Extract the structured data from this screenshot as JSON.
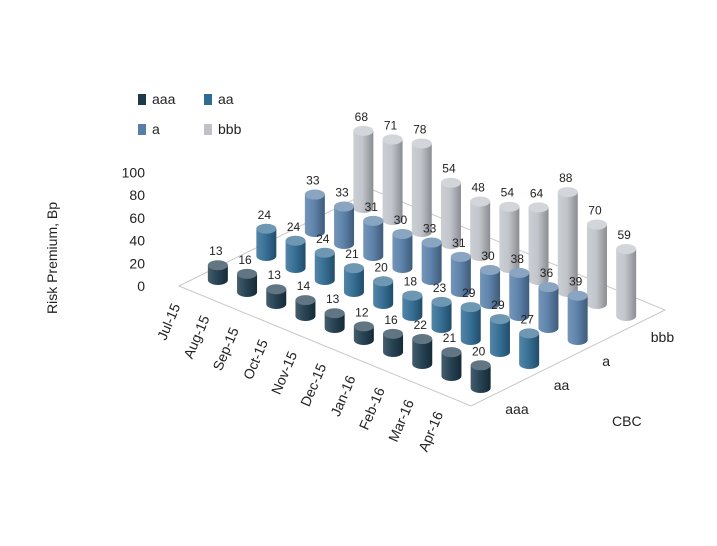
{
  "chart_data": {
    "type": "bar",
    "subtype": "3d-cylinder",
    "title": "",
    "ylabel": "Risk Premium, Bp",
    "depth_axis_label": "CBC",
    "ylim": [
      0,
      100
    ],
    "yticks": [
      "0",
      "20",
      "40",
      "60",
      "80",
      "100"
    ],
    "grid": false,
    "legend_position": "top-left",
    "categories": [
      "Jul-15",
      "Aug-15",
      "Sep-15",
      "Oct-15",
      "Nov-15",
      "Dec-15",
      "Jan-16",
      "Feb-16",
      "Mar-16",
      "Apr-16"
    ],
    "series": [
      {
        "name": "aaa",
        "color": "#1d3a4c",
        "values": [
          13,
          16,
          13,
          14,
          13,
          12,
          16,
          22,
          21,
          20
        ]
      },
      {
        "name": "aa",
        "color": "#2e6a92",
        "values": [
          24,
          24,
          24,
          21,
          20,
          18,
          23,
          29,
          29,
          27
        ]
      },
      {
        "name": "a",
        "color": "#577ea8",
        "values": [
          33,
          33,
          31,
          30,
          33,
          31,
          30,
          38,
          36,
          39
        ]
      },
      {
        "name": "bbb",
        "color": "#bfc3c9",
        "values": [
          68,
          71,
          78,
          54,
          48,
          54,
          64,
          88,
          70,
          59
        ]
      }
    ]
  }
}
